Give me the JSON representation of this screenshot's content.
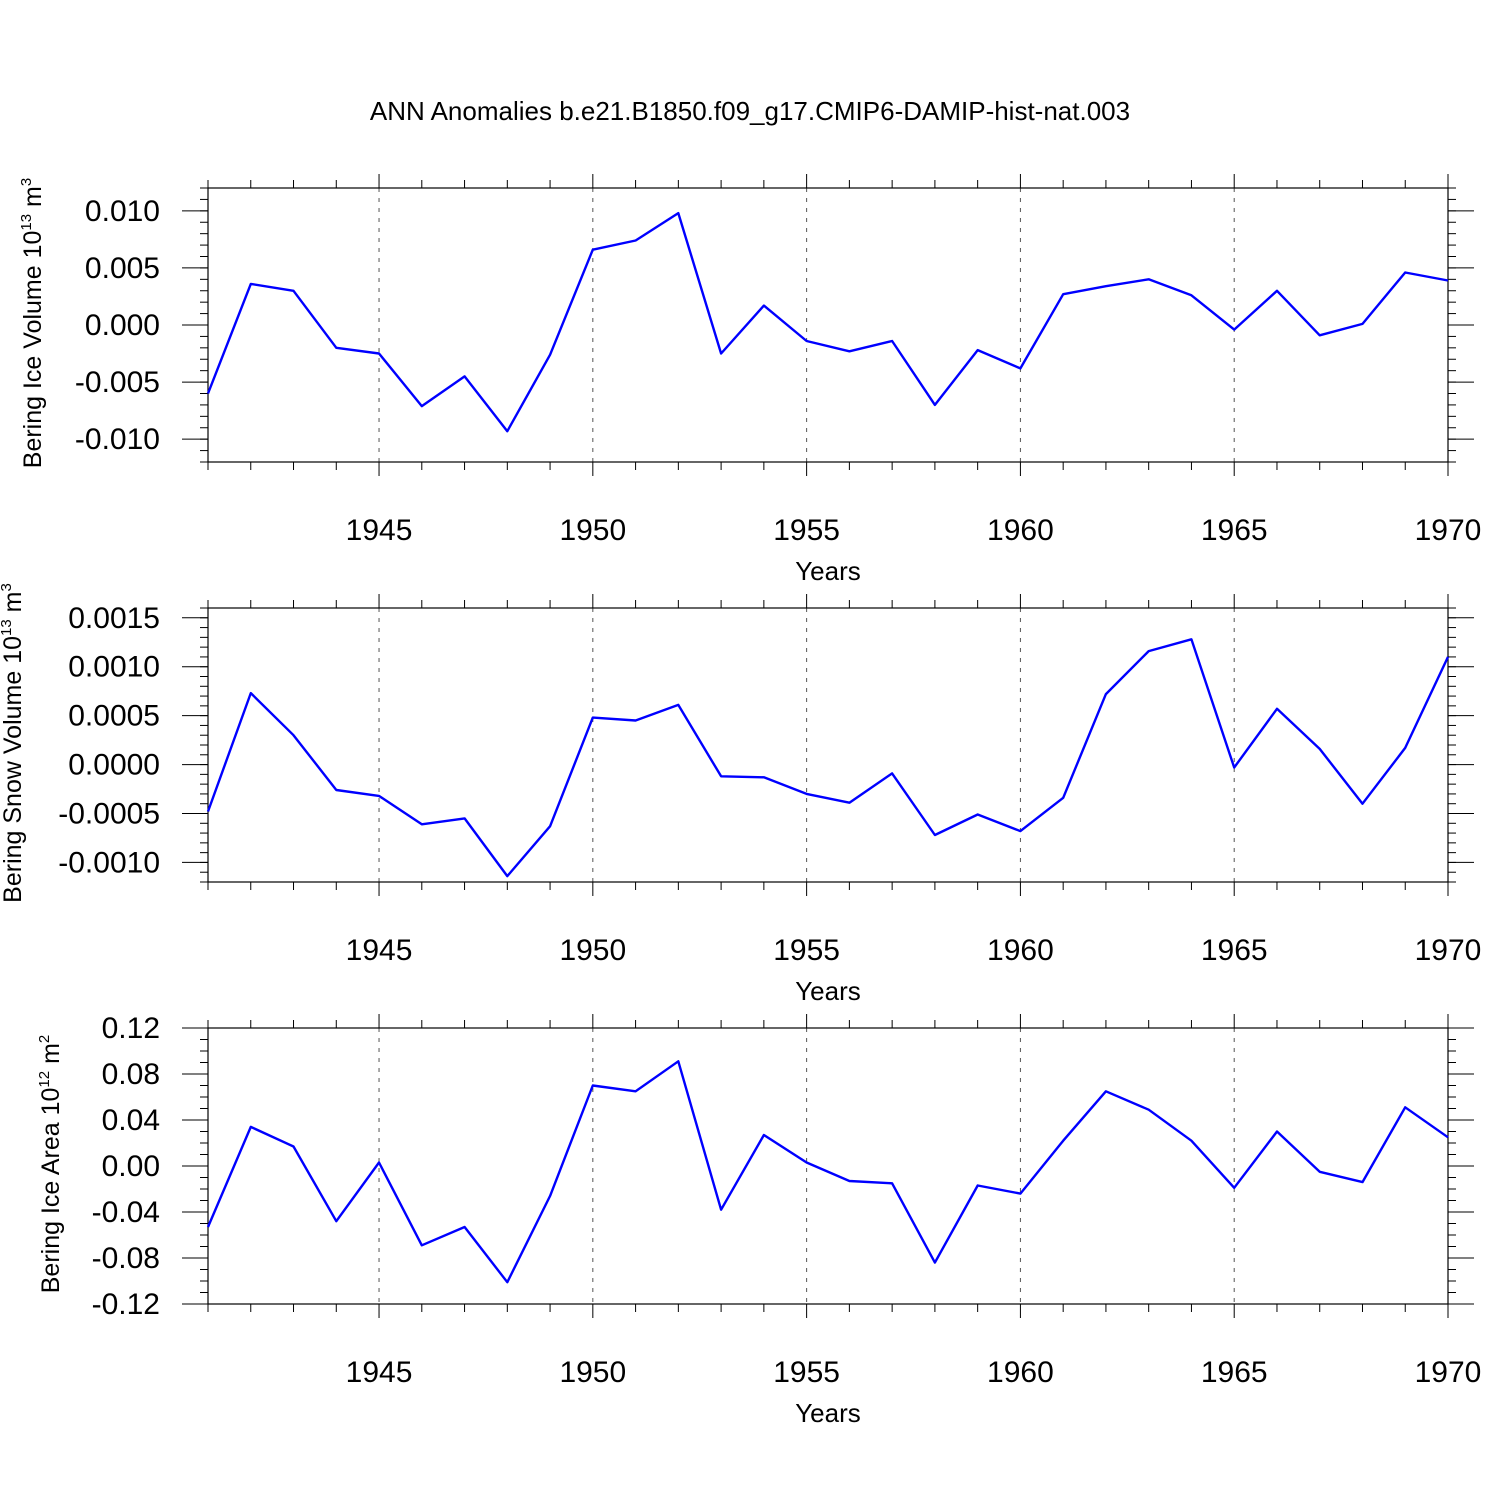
{
  "figure": {
    "title": "ANN Anomalies b.e21.B1850.f09_g17.CMIP6-DAMIP-hist-nat.003"
  },
  "style": {
    "line_color": "#0000ff",
    "axis_color": "#000000",
    "grid_color": "#555555"
  },
  "chart_data": [
    {
      "type": "line",
      "name": "ice-volume",
      "title": "",
      "xlabel": "Years",
      "ylabel_main": "Bering Ice Volume 10",
      "ylabel_exp": "13",
      "ylabel_unit": " m",
      "ylabel_unit_exp": "3",
      "xlim": [
        1941,
        1970
      ],
      "ylim": [
        -0.012,
        0.012
      ],
      "x_ticks": [
        1945,
        1950,
        1955,
        1960,
        1965,
        1970
      ],
      "y_ticks": [
        -0.01,
        -0.005,
        0.0,
        0.005,
        0.01
      ],
      "y_tick_labels": [
        "-0.010",
        "-0.005",
        "0.000",
        "0.005",
        "0.010"
      ],
      "y_minor_step": 0.001,
      "grid": "vertical dashed at major x ticks",
      "x": [
        1941,
        1942,
        1943,
        1944,
        1945,
        1946,
        1947,
        1948,
        1949,
        1950,
        1951,
        1952,
        1953,
        1954,
        1955,
        1956,
        1957,
        1958,
        1959,
        1960,
        1961,
        1962,
        1963,
        1964,
        1965,
        1966,
        1967,
        1968,
        1969,
        1970
      ],
      "y": [
        -0.006,
        0.0036,
        0.003,
        -0.002,
        -0.0025,
        -0.0071,
        -0.0045,
        -0.0093,
        -0.0026,
        0.0066,
        0.0074,
        0.0098,
        -0.0025,
        0.0017,
        -0.0014,
        -0.0023,
        -0.0014,
        -0.007,
        -0.0022,
        -0.0038,
        0.0027,
        0.0034,
        0.004,
        0.0026,
        -0.0004,
        0.003,
        -0.0009,
        0.0001,
        0.0046,
        0.0039
      ]
    },
    {
      "type": "line",
      "name": "snow-volume",
      "title": "",
      "xlabel": "Years",
      "ylabel_main": "Bering Snow Volume 10",
      "ylabel_exp": "13",
      "ylabel_unit": " m",
      "ylabel_unit_exp": "3",
      "xlim": [
        1941,
        1970
      ],
      "ylim": [
        -0.0012,
        0.0016
      ],
      "x_ticks": [
        1945,
        1950,
        1955,
        1960,
        1965,
        1970
      ],
      "y_ticks": [
        -0.001,
        -0.0005,
        0.0,
        0.0005,
        0.001,
        0.0015
      ],
      "y_tick_labels": [
        "-0.0010",
        "-0.0005",
        "0.0000",
        "0.0005",
        "0.0010",
        "0.0015"
      ],
      "y_minor_step": 0.0001,
      "grid": "vertical dashed at major x ticks",
      "x": [
        1941,
        1942,
        1943,
        1944,
        1945,
        1946,
        1947,
        1948,
        1949,
        1950,
        1951,
        1952,
        1953,
        1954,
        1955,
        1956,
        1957,
        1958,
        1959,
        1960,
        1961,
        1962,
        1963,
        1964,
        1965,
        1966,
        1967,
        1968,
        1969,
        1970
      ],
      "y": [
        -0.00048,
        0.00073,
        0.0003,
        -0.00026,
        -0.00032,
        -0.00061,
        -0.00055,
        -0.00114,
        -0.00063,
        0.00048,
        0.00045,
        0.00061,
        -0.00012,
        -0.00013,
        -0.0003,
        -0.00039,
        -9e-05,
        -0.00072,
        -0.00051,
        -0.00068,
        -0.00034,
        0.00072,
        0.00116,
        0.00128,
        -3e-05,
        0.00057,
        0.00016,
        -0.0004,
        0.00017,
        0.0011
      ]
    },
    {
      "type": "line",
      "name": "ice-area",
      "title": "",
      "xlabel": "Years",
      "ylabel_main": "Bering Ice Area 10",
      "ylabel_exp": "12",
      "ylabel_unit": " m",
      "ylabel_unit_exp": "2",
      "xlim": [
        1941,
        1970
      ],
      "ylim": [
        -0.12,
        0.12
      ],
      "x_ticks": [
        1945,
        1950,
        1955,
        1960,
        1965,
        1970
      ],
      "y_ticks": [
        -0.12,
        -0.08,
        -0.04,
        0.0,
        0.04,
        0.08,
        0.12
      ],
      "y_tick_labels": [
        "-0.12",
        "-0.08",
        "-0.04",
        "0.00",
        "0.04",
        "0.08",
        "0.12"
      ],
      "y_minor_step": 0.01,
      "grid": "vertical dashed at major x ticks",
      "x": [
        1941,
        1942,
        1943,
        1944,
        1945,
        1946,
        1947,
        1948,
        1949,
        1950,
        1951,
        1952,
        1953,
        1954,
        1955,
        1956,
        1957,
        1958,
        1959,
        1960,
        1961,
        1962,
        1963,
        1964,
        1965,
        1966,
        1967,
        1968,
        1969,
        1970
      ],
      "y": [
        -0.053,
        0.034,
        0.017,
        -0.048,
        0.003,
        -0.069,
        -0.053,
        -0.101,
        -0.026,
        0.07,
        0.065,
        0.091,
        -0.038,
        0.027,
        0.003,
        -0.013,
        -0.015,
        -0.084,
        -0.017,
        -0.024,
        0.022,
        0.065,
        0.049,
        0.022,
        -0.019,
        0.03,
        -0.005,
        -0.014,
        0.051,
        0.025
      ]
    }
  ]
}
